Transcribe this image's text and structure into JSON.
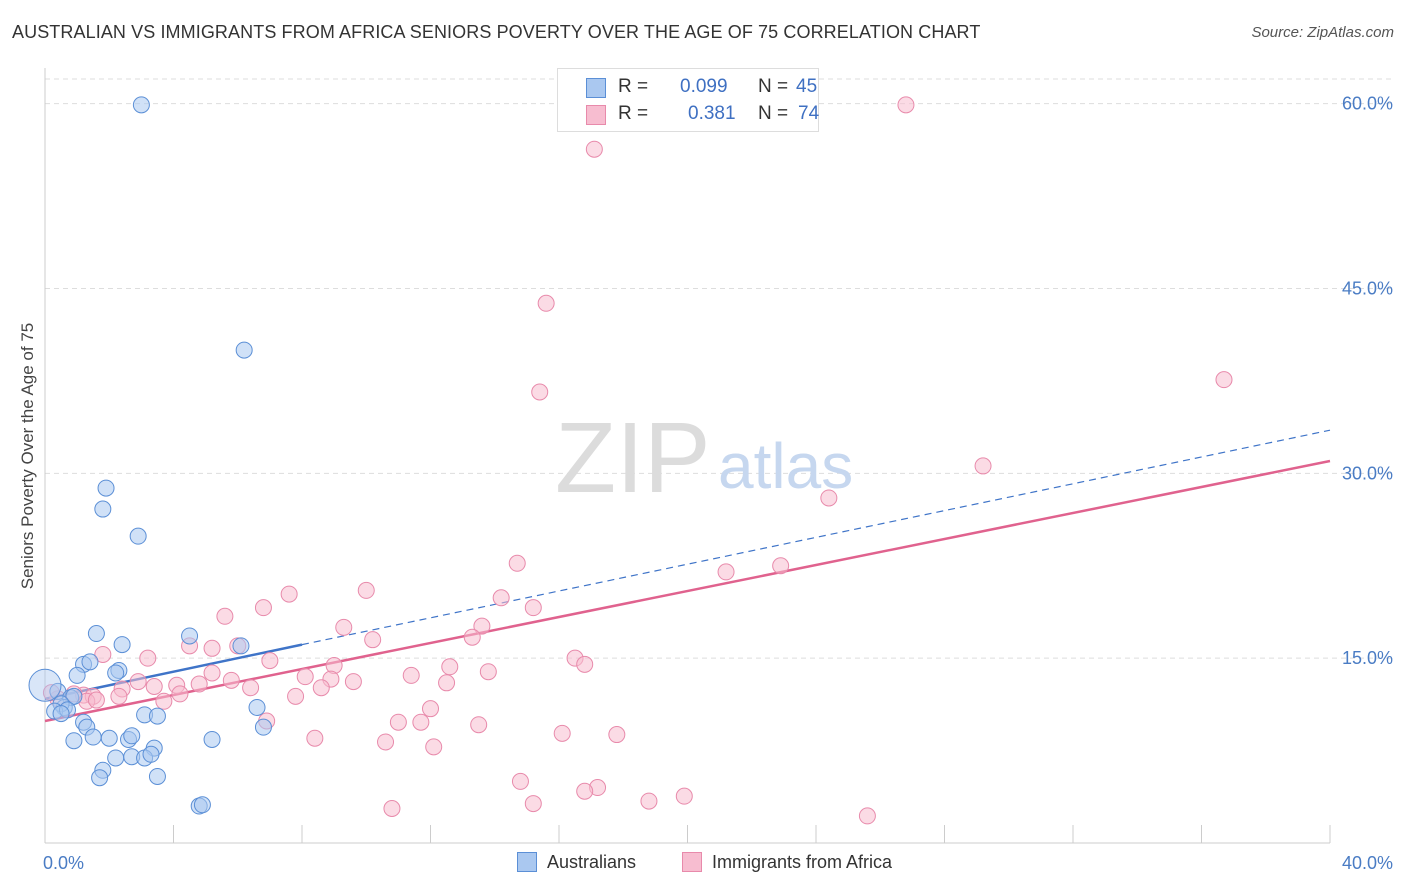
{
  "title": "AUSTRALIAN VS IMMIGRANTS FROM AFRICA SENIORS POVERTY OVER THE AGE OF 75 CORRELATION CHART",
  "source": "Source: ZipAtlas.com",
  "watermark": {
    "zip": "ZIP",
    "atlas": "atlas"
  },
  "legend": {
    "rows": [
      {
        "r_label": "R =",
        "r_value": "0.099",
        "n_label": "N =",
        "n_value": "45"
      },
      {
        "r_label": "R =",
        "r_value": "0.381",
        "n_label": "N =",
        "n_value": "74"
      }
    ]
  },
  "bottom_legend": {
    "series1": "Australians",
    "series2": "Immigrants from Africa"
  },
  "colors": {
    "blue_fill": "#aac8f0",
    "blue_stroke": "#5b8fd6",
    "blue_line": "#3f74c8",
    "pink_fill": "#f7bdd0",
    "pink_stroke": "#e88aab",
    "pink_line": "#e0628e",
    "grid": "#dddddd",
    "tick_text": "#4a7cc4"
  },
  "chart_data": {
    "type": "scatter",
    "title": "AUSTRALIAN VS IMMIGRANTS FROM AFRICA SENIORS POVERTY OVER THE AGE OF 75 CORRELATION CHART",
    "xlabel": "",
    "ylabel": "Seniors Poverty Over the Age of 75",
    "xlim": [
      0,
      40
    ],
    "ylim": [
      0,
      62
    ],
    "y_ticks": [
      15,
      30,
      45,
      60
    ],
    "y_tick_labels": [
      "15.0%",
      "30.0%",
      "45.0%",
      "60.0%"
    ],
    "x_tick_labels": [
      "0.0%",
      "40.0%"
    ],
    "grid": true,
    "legend_position": "top-center",
    "series": [
      {
        "name": "Australians",
        "r": 0.099,
        "n": 45,
        "trend": {
          "x": [
            0,
            8
          ],
          "y": [
            11.7,
            16.1
          ],
          "extended_to": {
            "x": 40,
            "y": 33.5
          }
        },
        "points": [
          [
            3.0,
            59.9
          ],
          [
            6.2,
            40.0
          ],
          [
            1.9,
            28.8
          ],
          [
            1.8,
            27.1
          ],
          [
            2.9,
            24.9
          ],
          [
            1.6,
            17.0
          ],
          [
            2.4,
            16.1
          ],
          [
            4.5,
            16.8
          ],
          [
            6.1,
            16.0
          ],
          [
            1.2,
            14.5
          ],
          [
            1.4,
            14.7
          ],
          [
            2.3,
            14.0
          ],
          [
            2.2,
            13.8
          ],
          [
            1.0,
            13.6
          ],
          [
            0.4,
            12.3
          ],
          [
            0.8,
            11.8
          ],
          [
            0.9,
            11.9
          ],
          [
            0.6,
            11.0
          ],
          [
            0.5,
            11.3
          ],
          [
            0.3,
            10.7
          ],
          [
            0.7,
            10.8
          ],
          [
            0.5,
            10.5
          ],
          [
            6.6,
            11.0
          ],
          [
            3.1,
            10.4
          ],
          [
            3.5,
            10.3
          ],
          [
            1.2,
            9.8
          ],
          [
            1.3,
            9.4
          ],
          [
            6.8,
            9.4
          ],
          [
            1.5,
            8.6
          ],
          [
            0.9,
            8.3
          ],
          [
            2.0,
            8.5
          ],
          [
            2.6,
            8.4
          ],
          [
            2.7,
            8.7
          ],
          [
            5.2,
            8.4
          ],
          [
            3.4,
            7.7
          ],
          [
            2.2,
            6.9
          ],
          [
            2.7,
            7.0
          ],
          [
            3.1,
            6.9
          ],
          [
            3.3,
            7.2
          ],
          [
            1.8,
            5.9
          ],
          [
            1.7,
            5.3
          ],
          [
            3.5,
            5.4
          ],
          [
            4.8,
            3.0
          ],
          [
            4.9,
            3.1
          ],
          [
            0.0,
            12.8
          ]
        ]
      },
      {
        "name": "Immigrants from Africa",
        "r": 0.381,
        "n": 74,
        "trend": {
          "x": [
            0,
            40
          ],
          "y": [
            9.9,
            31.0
          ]
        },
        "points": [
          [
            26.8,
            59.9
          ],
          [
            17.1,
            56.3
          ],
          [
            15.6,
            43.8
          ],
          [
            15.4,
            36.6
          ],
          [
            36.7,
            37.6
          ],
          [
            29.2,
            30.6
          ],
          [
            24.4,
            28.0
          ],
          [
            14.7,
            22.7
          ],
          [
            22.9,
            22.5
          ],
          [
            21.2,
            22.0
          ],
          [
            10.0,
            20.5
          ],
          [
            7.6,
            20.2
          ],
          [
            14.2,
            19.9
          ],
          [
            6.8,
            19.1
          ],
          [
            15.2,
            19.1
          ],
          [
            5.6,
            18.4
          ],
          [
            9.3,
            17.5
          ],
          [
            13.6,
            17.6
          ],
          [
            10.2,
            16.5
          ],
          [
            13.3,
            16.7
          ],
          [
            4.5,
            16.0
          ],
          [
            6.0,
            16.0
          ],
          [
            5.2,
            15.8
          ],
          [
            1.8,
            15.3
          ],
          [
            3.2,
            15.0
          ],
          [
            7.0,
            14.8
          ],
          [
            9.0,
            14.4
          ],
          [
            16.5,
            15.0
          ],
          [
            16.8,
            14.5
          ],
          [
            12.6,
            14.3
          ],
          [
            13.8,
            13.9
          ],
          [
            11.4,
            13.6
          ],
          [
            5.2,
            13.8
          ],
          [
            8.1,
            13.5
          ],
          [
            2.9,
            13.1
          ],
          [
            5.8,
            13.2
          ],
          [
            9.6,
            13.1
          ],
          [
            8.9,
            13.3
          ],
          [
            12.5,
            13.0
          ],
          [
            2.4,
            12.5
          ],
          [
            3.4,
            12.7
          ],
          [
            4.1,
            12.8
          ],
          [
            4.8,
            12.9
          ],
          [
            6.4,
            12.6
          ],
          [
            8.6,
            12.6
          ],
          [
            4.2,
            12.1
          ],
          [
            7.8,
            11.9
          ],
          [
            1.2,
            12.0
          ],
          [
            1.5,
            11.9
          ],
          [
            0.9,
            12.1
          ],
          [
            1.3,
            11.5
          ],
          [
            1.6,
            11.6
          ],
          [
            2.3,
            11.9
          ],
          [
            0.4,
            11.7
          ],
          [
            3.7,
            11.5
          ],
          [
            0.2,
            12.2
          ],
          [
            6.9,
            9.9
          ],
          [
            11.0,
            9.8
          ],
          [
            11.7,
            9.8
          ],
          [
            13.5,
            9.6
          ],
          [
            12.0,
            10.9
          ],
          [
            16.1,
            8.9
          ],
          [
            17.8,
            8.8
          ],
          [
            8.4,
            8.5
          ],
          [
            10.6,
            8.2
          ],
          [
            12.1,
            7.8
          ],
          [
            14.8,
            5.0
          ],
          [
            17.2,
            4.5
          ],
          [
            16.8,
            4.2
          ],
          [
            19.9,
            3.8
          ],
          [
            18.8,
            3.4
          ],
          [
            15.2,
            3.2
          ],
          [
            10.8,
            2.8
          ],
          [
            25.6,
            2.2
          ]
        ]
      }
    ]
  }
}
